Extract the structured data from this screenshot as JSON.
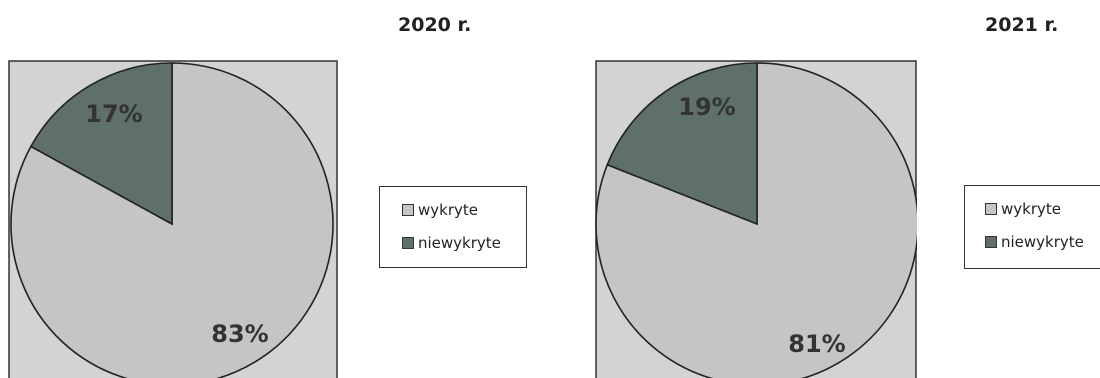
{
  "chart_data": [
    {
      "type": "pie",
      "title": "2020 r.",
      "categories": [
        "wykryte",
        "niewykryte"
      ],
      "values": [
        83,
        17
      ],
      "labels": [
        "83%",
        "17%"
      ],
      "colors": [
        "#c5c5c5",
        "#5f6f6a"
      ],
      "legend_position": "right"
    },
    {
      "type": "pie",
      "title": "2021 r.",
      "categories": [
        "wykryte",
        "niewykryte"
      ],
      "values": [
        81,
        19
      ],
      "labels": [
        "81%",
        "19%"
      ],
      "colors": [
        "#c5c5c5",
        "#5f6f6a"
      ],
      "legend_position": "right"
    }
  ]
}
